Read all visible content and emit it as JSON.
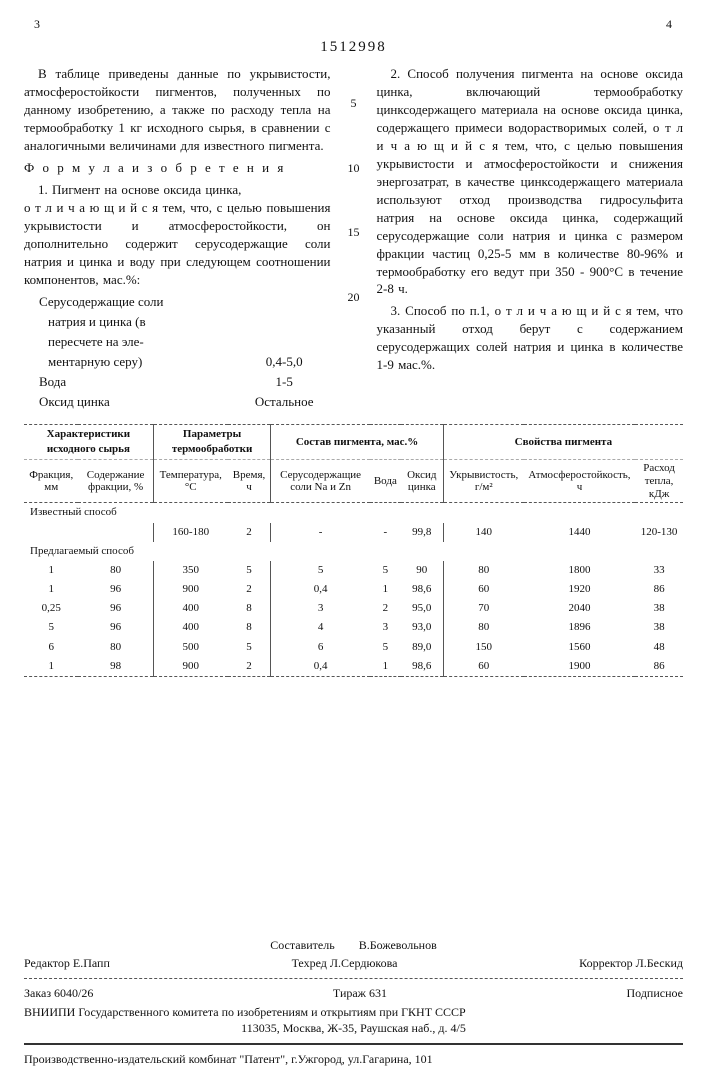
{
  "head": {
    "left_pg": "3",
    "right_pg": "4",
    "docnum": "1512998"
  },
  "gutter_marks": [
    "5",
    "10",
    "15",
    "20"
  ],
  "left_col": {
    "p1": "В таблице приведены данные по укрывистости, атмосферостойкости пигментов, полученных по данному изобретению, а также по расходу тепла на термообработку 1 кг исходного сырья, в сравнении с аналогичными величинами для известного пигмента.",
    "formula": "Ф о р м у л а  и з о б р е т е н и я",
    "p2a": "1. Пигмент на основе оксида цинка,",
    "p2b": "о т л и ч а ю щ и й с я  тем, что, с целью повышения укрывистости и атмосферостойкости, он дополнительно содержит серусодержащие соли натрия и цинка и воду при следующем соотношении компонентов, мас.%:",
    "comp_label1a": "Серусодержащие соли",
    "comp_label1b": "натрия и цинка (в",
    "comp_label1c": "пересчете на эле-",
    "comp_label1d": "ментарную серу)",
    "comp_val1": "0,4-5,0",
    "comp_label2": "Вода",
    "comp_val2": "1-5",
    "comp_label3": "Оксид цинка",
    "comp_val3": "Остальное"
  },
  "right_col": {
    "p1": "2. Способ получения пигмента на основе оксида цинка, включающий термообработку цинксодержащего материала на основе оксида цинка, содержащего примеси водорастворимых солей,  о т л и ч а ю щ и й с я  тем, что, с целью повышения укрывистости и атмосферостойкости и снижения энергозатрат, в качестве цинксодержащего материала используют отход производства гидросульфита натрия на основе оксида цинка, содержащий серусодержащие соли натрия и цинка с размером фракции частиц 0,25-5 мм в количестве 80-96% и термообработку его ведут при 350 - 900°С в течение 2-8 ч.",
    "p2": "3. Способ по п.1,  о т л и ч а ю щ и й с я  тем, что указанный отход берут с содержанием серусодержащих солей натрия и цинка в количестве 1-9 мас.%."
  },
  "table": {
    "group_headers": [
      "Характеристики исходного сырья",
      "Параметры термообработки",
      "Состав пигмента, мас.%",
      "Свойства пигмента"
    ],
    "sub_headers": [
      "Фракция, мм",
      "Содержание фракции, %",
      "Температура, °С",
      "Время, ч",
      "Серусодержащие соли Na и Zn",
      "Вода",
      "Оксид цинка",
      "Укрывистость, г/м²",
      "Атмосферостойкость, ч",
      "Расход тепла, кДж"
    ],
    "row_known_label": "Известный способ",
    "row_known": [
      "",
      "",
      "160-180",
      "2",
      "-",
      "-",
      "99,8",
      "140",
      "1440",
      "120-130"
    ],
    "row_prop_label": "Предлагаемый способ",
    "rows": [
      [
        "1",
        "80",
        "350",
        "5",
        "5",
        "5",
        "90",
        "80",
        "1800",
        "33"
      ],
      [
        "1",
        "96",
        "900",
        "2",
        "0,4",
        "1",
        "98,6",
        "60",
        "1920",
        "86"
      ],
      [
        "0,25",
        "96",
        "400",
        "8",
        "3",
        "2",
        "95,0",
        "70",
        "2040",
        "38"
      ],
      [
        "5",
        "96",
        "400",
        "8",
        "4",
        "3",
        "93,0",
        "80",
        "1896",
        "38"
      ],
      [
        "6",
        "80",
        "500",
        "5",
        "6",
        "5",
        "89,0",
        "150",
        "1560",
        "48"
      ],
      [
        "1",
        "98",
        "900",
        "2",
        "0,4",
        "1",
        "98,6",
        "60",
        "1900",
        "86"
      ]
    ]
  },
  "colophon": {
    "compiler_lbl": "Составитель",
    "compiler": "В.Божевольнов",
    "editor_lbl": "Редактор",
    "editor": "Е.Папп",
    "tech_lbl": "Техред",
    "tech": "Л.Сердюкова",
    "corr_lbl": "Корректор",
    "corr": "Л.Бескид",
    "order": "Заказ 6040/26",
    "tirazh": "Тираж  631",
    "podp": "Подписное",
    "org": "ВНИИПИ Государственного комитета по изобретениям и открытиям при ГКНТ СССР",
    "addr": "113035, Москва, Ж-35, Раушская наб., д. 4/5",
    "printer": "Производственно-издательский комбинат \"Патент\", г.Ужгород, ул.Гагарина, 101"
  }
}
